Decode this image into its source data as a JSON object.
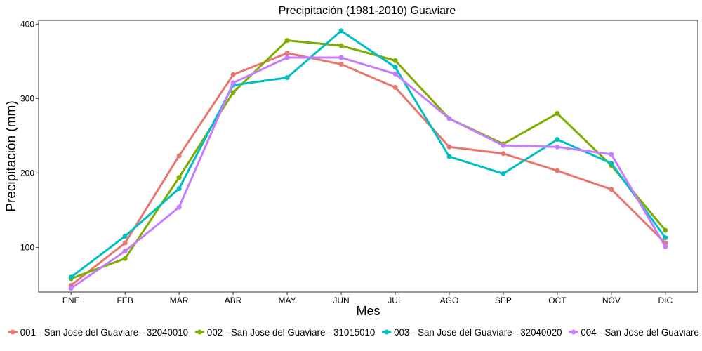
{
  "chart_data": {
    "type": "line",
    "title": "Precipitación (1981-2010)  Guaviare",
    "xlabel": "Mes",
    "ylabel": "Precipitación (mm)",
    "categories": [
      "ENE",
      "FEB",
      "MAR",
      "ABR",
      "MAY",
      "JUN",
      "JUL",
      "AGO",
      "SEP",
      "OCT",
      "NOV",
      "DIC"
    ],
    "ylim": [
      40,
      405
    ],
    "yticks": [
      100,
      200,
      300,
      400
    ],
    "grid": false,
    "legend_position": "bottom",
    "series": [
      {
        "name": "001 - San Jose del Guaviare - 32040010",
        "color": "#E8766F",
        "values": [
          49,
          106,
          223,
          332,
          361,
          346,
          315,
          235,
          226,
          203,
          178,
          106
        ]
      },
      {
        "name": "002 - San Jose del Guaviare - 31015010",
        "color": "#7CAE00",
        "values": [
          58,
          85,
          194,
          308,
          378,
          371,
          351,
          273,
          239,
          280,
          210,
          123
        ]
      },
      {
        "name": "003 - San Jose del Guaviare - 32040020",
        "color": "#00BFC4",
        "values": [
          60,
          115,
          179,
          318,
          328,
          391,
          342,
          222,
          199,
          245,
          213,
          113
        ]
      },
      {
        "name": "004 - San Jose del Guaviare",
        "color": "#C77CFF",
        "values": [
          45,
          95,
          154,
          321,
          355,
          355,
          333,
          273,
          237,
          235,
          225,
          101
        ]
      }
    ]
  }
}
